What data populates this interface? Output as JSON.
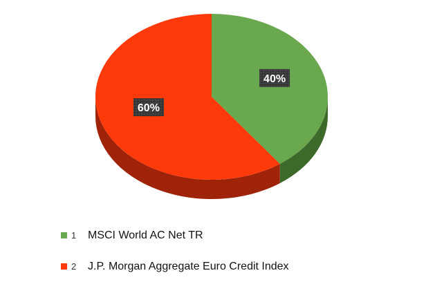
{
  "chart_data": {
    "type": "pie",
    "title": "",
    "slices": [
      {
        "index": "1",
        "name": "MSCI World AC Net TR",
        "value": 40,
        "label": "40%",
        "color": "#6aa84f",
        "side_color": "#3d6a2a"
      },
      {
        "index": "2",
        "name": "J.P. Morgan Aggregate Euro Credit Index",
        "value": 60,
        "label": "60%",
        "color": "#ff3a0a",
        "side_color": "#9e2308"
      }
    ],
    "legend_position": "bottom-left",
    "three_d": true
  }
}
